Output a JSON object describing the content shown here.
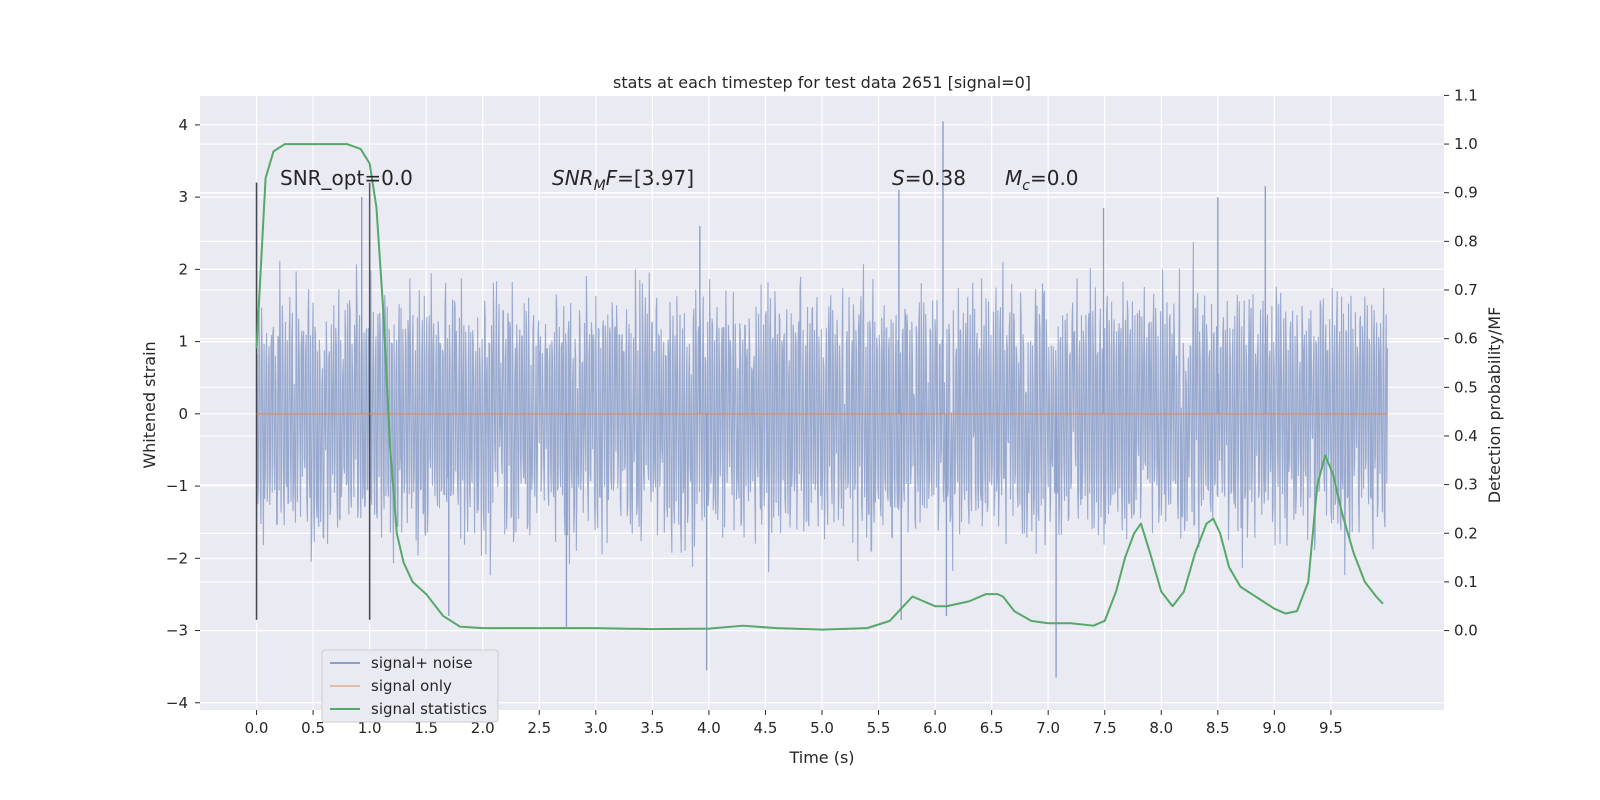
{
  "chart_data": {
    "type": "line",
    "title": "stats at each timestep for test data 2651 [signal=0]",
    "xlabel": "Time (s)",
    "ylabel_left": "Whitened strain",
    "ylabel_right": "Detection probability/MF",
    "xlim": [
      -0.5,
      10.5
    ],
    "ylim_left": [
      -4.1,
      4.4
    ],
    "ylim_right": [
      -0.1633,
      1.0988
    ],
    "x_ticks": [
      "0.0",
      "0.5",
      "1.0",
      "1.5",
      "2.0",
      "2.5",
      "3.0",
      "3.5",
      "4.0",
      "4.5",
      "5.0",
      "5.5",
      "6.0",
      "6.5",
      "7.0",
      "7.5",
      "8.0",
      "8.5",
      "9.0",
      "9.5"
    ],
    "y_ticks_left": [
      "4",
      "3",
      "2",
      "1",
      "0",
      "−1",
      "−2",
      "−3",
      "−4"
    ],
    "y_ticks_right": [
      "0.0",
      "0.1",
      "0.2",
      "0.3",
      "0.4",
      "0.5",
      "0.6",
      "0.7",
      "0.8",
      "0.9",
      "1.0",
      "1.1"
    ],
    "grid": true,
    "window_markers": [
      0.0,
      1.0
    ],
    "annotations": {
      "snr_opt": "SNR_opt=0.0",
      "snr_mf_base": "SNR",
      "snr_mf_sub": "M",
      "snr_mf_rest": "F=[3.97]",
      "s_sym": "S",
      "s_val": "=0.38",
      "mc_sym": "M",
      "mc_sub": "c",
      "mc_val": "=0.0"
    },
    "series": [
      {
        "name": "signal+ noise",
        "color": "#8c9fc9",
        "kind": "noise",
        "x_range": [
          0.0,
          10.0
        ],
        "amplitude_typical": 1.4,
        "notable_peaks": [
          {
            "x": 0.0,
            "y": 3.2
          },
          {
            "x": 0.0,
            "y": -2.85
          },
          {
            "x": 0.93,
            "y": 3.0
          },
          {
            "x": 1.0,
            "y": -2.85
          },
          {
            "x": 1.7,
            "y": -2.8
          },
          {
            "x": 2.74,
            "y": -2.95
          },
          {
            "x": 3.92,
            "y": 2.6
          },
          {
            "x": 3.98,
            "y": -3.55
          },
          {
            "x": 5.68,
            "y": 3.1
          },
          {
            "x": 5.7,
            "y": -2.85
          },
          {
            "x": 6.07,
            "y": 4.05
          },
          {
            "x": 6.1,
            "y": -2.8
          },
          {
            "x": 7.07,
            "y": -3.65
          },
          {
            "x": 7.49,
            "y": 2.85
          },
          {
            "x": 8.5,
            "y": 3.0
          },
          {
            "x": 8.92,
            "y": 3.15
          }
        ]
      },
      {
        "name": "signal only",
        "color": "#dd8452",
        "kind": "constant",
        "x": [
          0.0,
          10.0
        ],
        "y": [
          0.0,
          0.0
        ]
      },
      {
        "name": "signal statistics",
        "color": "#55a868",
        "kind": "line",
        "axis": "right",
        "x": [
          0.0,
          0.08,
          0.15,
          0.25,
          0.4,
          0.6,
          0.8,
          0.92,
          1.0,
          1.06,
          1.12,
          1.18,
          1.24,
          1.3,
          1.38,
          1.5,
          1.65,
          1.8,
          2.0,
          2.5,
          3.0,
          3.5,
          4.0,
          4.3,
          4.6,
          5.0,
          5.4,
          5.6,
          5.72,
          5.8,
          5.9,
          6.0,
          6.1,
          6.3,
          6.45,
          6.55,
          6.6,
          6.7,
          6.85,
          7.0,
          7.2,
          7.4,
          7.5,
          7.6,
          7.68,
          7.76,
          7.82,
          7.9,
          8.0,
          8.1,
          8.2,
          8.3,
          8.4,
          8.46,
          8.52,
          8.6,
          8.7,
          8.8,
          8.9,
          9.0,
          9.1,
          9.2,
          9.3,
          9.38,
          9.45,
          9.52,
          9.6,
          9.7,
          9.8,
          9.9,
          9.96
        ],
        "y": [
          0.58,
          0.93,
          0.985,
          1.0,
          1.0,
          1.0,
          1.0,
          0.99,
          0.96,
          0.87,
          0.66,
          0.38,
          0.2,
          0.14,
          0.1,
          0.075,
          0.03,
          0.008,
          0.005,
          0.005,
          0.005,
          0.003,
          0.004,
          0.01,
          0.005,
          0.002,
          0.005,
          0.02,
          0.05,
          0.07,
          0.06,
          0.05,
          0.05,
          0.06,
          0.075,
          0.075,
          0.07,
          0.04,
          0.02,
          0.015,
          0.015,
          0.01,
          0.02,
          0.08,
          0.15,
          0.2,
          0.22,
          0.16,
          0.08,
          0.05,
          0.08,
          0.16,
          0.22,
          0.23,
          0.2,
          0.13,
          0.09,
          0.075,
          0.06,
          0.045,
          0.035,
          0.04,
          0.1,
          0.3,
          0.36,
          0.32,
          0.24,
          0.16,
          0.1,
          0.07,
          0.055
        ]
      }
    ],
    "legend": {
      "position": "lower-left",
      "entries": [
        "signal+ noise",
        "signal only",
        "signal statistics"
      ]
    }
  }
}
